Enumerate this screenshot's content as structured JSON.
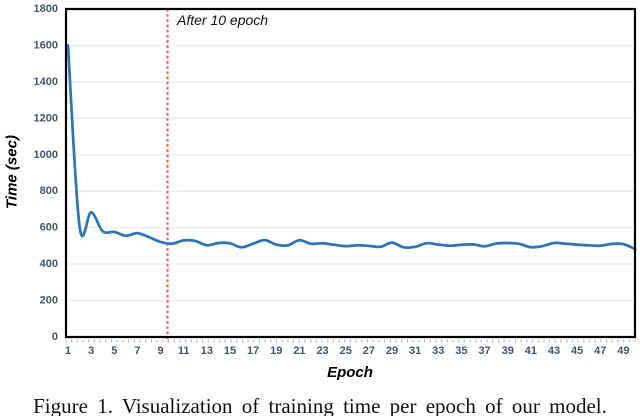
{
  "caption": {
    "text": "Figure 1. Visualization of training time per epoch of our model."
  },
  "chart_data": {
    "type": "line",
    "title": "",
    "xlabel": "Epoch",
    "ylabel": "Time (sec)",
    "annotation": "After 10 epoch",
    "annotation_line_epoch": 9.6,
    "x": [
      1,
      2,
      3,
      4,
      5,
      6,
      7,
      8,
      9,
      10,
      11,
      12,
      13,
      14,
      15,
      16,
      17,
      18,
      19,
      20,
      21,
      22,
      23,
      24,
      25,
      26,
      27,
      28,
      29,
      30,
      31,
      32,
      33,
      34,
      35,
      36,
      37,
      38,
      39,
      40,
      41,
      42,
      43,
      44,
      45,
      46,
      47,
      48,
      49,
      50
    ],
    "y": [
      1600,
      605,
      685,
      580,
      577,
      556,
      570,
      548,
      522,
      512,
      530,
      527,
      503,
      516,
      514,
      492,
      512,
      532,
      507,
      503,
      531,
      512,
      514,
      506,
      499,
      503,
      500,
      495,
      518,
      492,
      495,
      515,
      507,
      501,
      506,
      508,
      498,
      513,
      516,
      511,
      493,
      499,
      516,
      512,
      507,
      503,
      501,
      511,
      510,
      483
    ],
    "x_tick_labels": [
      1,
      3,
      5,
      7,
      9,
      11,
      13,
      15,
      17,
      19,
      21,
      23,
      25,
      27,
      29,
      31,
      33,
      35,
      37,
      39,
      41,
      43,
      45,
      47,
      49
    ],
    "y_ticks": [
      0,
      200,
      400,
      600,
      800,
      1000,
      1200,
      1400,
      1600,
      1800
    ],
    "ylim": [
      0,
      1800
    ],
    "xlim": [
      1,
      50
    ],
    "grid": "horizontal-major",
    "legend": "none",
    "series_name": "Training time per epoch",
    "colors": {
      "series": "#2E75B6",
      "annotation_line": "#F75D52",
      "tick_label": "#44546A",
      "gridline": "#E8EDF3",
      "minor_tick": "#A9B0BB",
      "plot_border": "#000000"
    }
  }
}
